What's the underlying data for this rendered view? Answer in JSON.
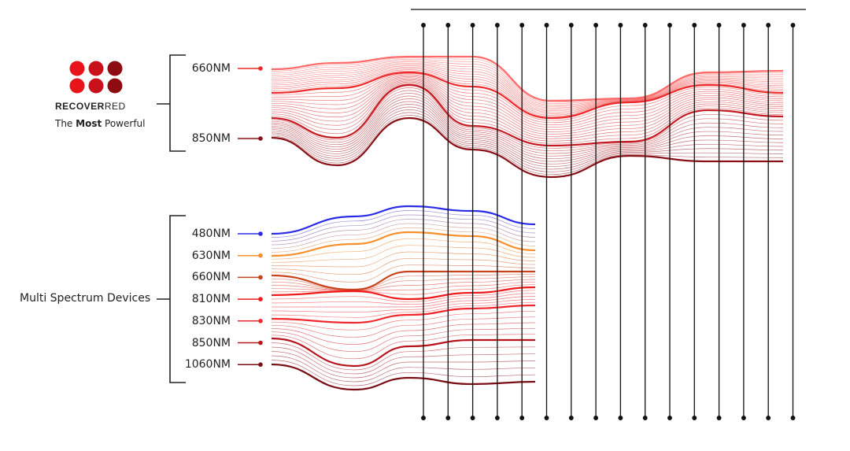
{
  "brand": {
    "name_bold": "RECOVER",
    "name_light": "RED",
    "tagline_pre": "The ",
    "tagline_bold": "Most",
    "tagline_post": " Powerful",
    "dot_colors": [
      "#e8141c",
      "#c8111a",
      "#8e0b12",
      "#e8141c",
      "#c8111a",
      "#8e0b12"
    ]
  },
  "group1": {
    "wavelengths": [
      {
        "label": "660NM",
        "color": "#ee2a2a"
      },
      {
        "label": "850NM",
        "color": "#8a1016"
      }
    ]
  },
  "group2": {
    "title": "Multi Spectrum Devices",
    "wavelengths": [
      {
        "label": "480NM",
        "color": "#2b2be6"
      },
      {
        "label": "630NM",
        "color": "#f7902a"
      },
      {
        "label": "660NM",
        "color": "#c8441c"
      },
      {
        "label": "810NM",
        "color": "#f01a1a"
      },
      {
        "label": "830NM",
        "color": "#f0282e"
      },
      {
        "label": "850NM",
        "color": "#b8141c"
      },
      {
        "label": "1060NM",
        "color": "#7a0e14"
      }
    ]
  }
}
